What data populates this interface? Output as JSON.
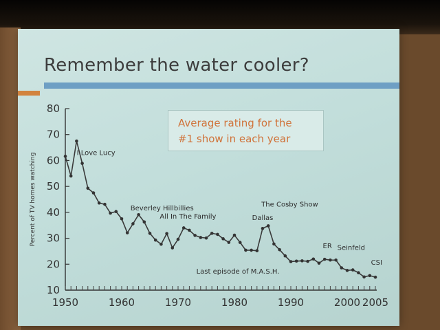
{
  "slide": {
    "title": "Remember the water cooler?",
    "caption_line_1": "Average rating for the",
    "caption_line_2": "#1 show in each year"
  },
  "colors": {
    "slide_background": "#c2dedb",
    "title_text": "#3d3d3d",
    "accent_orange": "#d2833e",
    "accent_blue": "#6e9fc4",
    "caption_text": "#d0733a",
    "line": "#3a3a3a"
  },
  "chart_data": {
    "type": "line",
    "title": "",
    "xlabel": "",
    "ylabel": "Percent of TV homes watching",
    "xlim": [
      1950,
      2005
    ],
    "ylim": [
      10,
      80
    ],
    "x_ticks": [
      1950,
      1960,
      1970,
      1980,
      1990,
      2000,
      2005
    ],
    "y_ticks": [
      10,
      20,
      30,
      40,
      50,
      60,
      70,
      80
    ],
    "grid": false,
    "series": [
      {
        "x": [
          1950,
          1951,
          1952,
          1953,
          1954,
          1955,
          1956,
          1957,
          1958,
          1959,
          1960,
          1961,
          1962,
          1963,
          1964,
          1965,
          1966,
          1967,
          1968,
          1969,
          1970,
          1971,
          1972,
          1973,
          1974,
          1975,
          1976,
          1977,
          1978,
          1979,
          1980,
          1981,
          1982,
          1983,
          1984,
          1985,
          1986,
          1987,
          1988,
          1989,
          1990,
          1991,
          1992,
          1993,
          1994,
          1995,
          1996,
          1997,
          1998,
          1999,
          2000,
          2001,
          2002,
          2003,
          2004,
          2005
        ],
        "y": [
          61.6,
          54.0,
          67.5,
          58.9,
          49.3,
          47.5,
          43.6,
          43.1,
          39.7,
          40.3,
          37.5,
          32.1,
          35.6,
          39.1,
          36.3,
          31.9,
          29.3,
          27.7,
          31.8,
          26.3,
          29.6,
          34.0,
          33.1,
          31.1,
          30.3,
          30.1,
          31.9,
          31.5,
          29.8,
          28.4,
          31.2,
          28.4,
          25.4,
          25.4,
          25.2,
          33.8,
          34.8,
          27.8,
          25.6,
          23.2,
          21.0,
          21.2,
          21.3,
          21.1,
          22.0,
          20.4,
          21.9,
          21.6,
          21.6,
          18.6,
          17.6,
          17.8,
          16.7,
          15.1,
          15.6,
          15.0
        ]
      }
    ],
    "annotations": [
      {
        "text": "I Love Lucy",
        "x": 1953
      },
      {
        "text": "Beverley Hillbillies",
        "x": 1964
      },
      {
        "text": "All In The Family",
        "x": 1972
      },
      {
        "text": "The Cosby Show",
        "x": 1986
      },
      {
        "text": "Dallas",
        "x": 1985
      },
      {
        "text": "Last episode of M.A.S.H.",
        "x": 1983
      },
      {
        "text": "ER",
        "x": 1996
      },
      {
        "text": "Seinfeld",
        "x": 1998
      },
      {
        "text": "CSI",
        "x": 2004
      }
    ]
  }
}
